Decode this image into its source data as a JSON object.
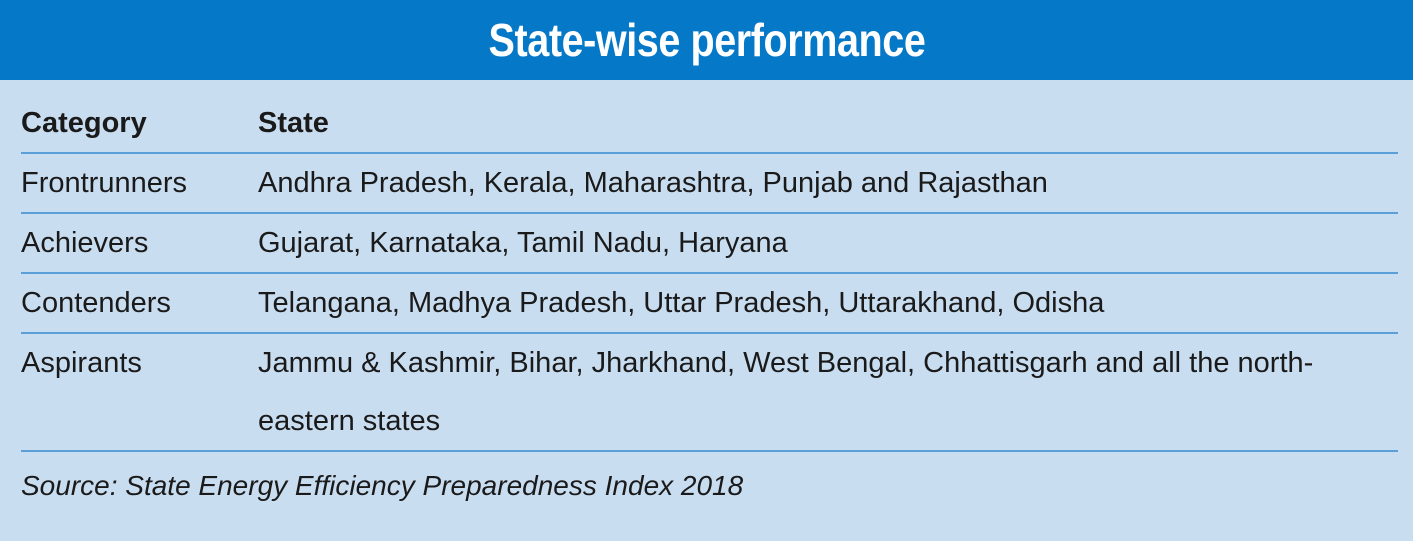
{
  "title": "State-wise performance",
  "table": {
    "headers": {
      "category": "Category",
      "state": "State"
    },
    "rows": [
      {
        "category": "Frontrunners",
        "state": "Andhra Pradesh, Kerala, Maharashtra, Punjab and Rajasthan"
      },
      {
        "category": "Achievers",
        "state": "Gujarat, Karnataka, Tamil Nadu, Haryana"
      },
      {
        "category": "Contenders",
        "state": "Telangana, Madhya Pradesh, Uttar Pradesh, Uttarakhand, Odisha"
      },
      {
        "category": "Aspirants",
        "state": "Jammu & Kashmir, Bihar, Jharkhand, West Bengal, Chhattisgarh and all the north-eastern states"
      }
    ]
  },
  "source": "Source: State Energy Efficiency Preparedness Index 2018",
  "colors": {
    "header_background": "#0678c8",
    "panel_background": "#c9ddf1",
    "rule": "#5a9fd8"
  }
}
